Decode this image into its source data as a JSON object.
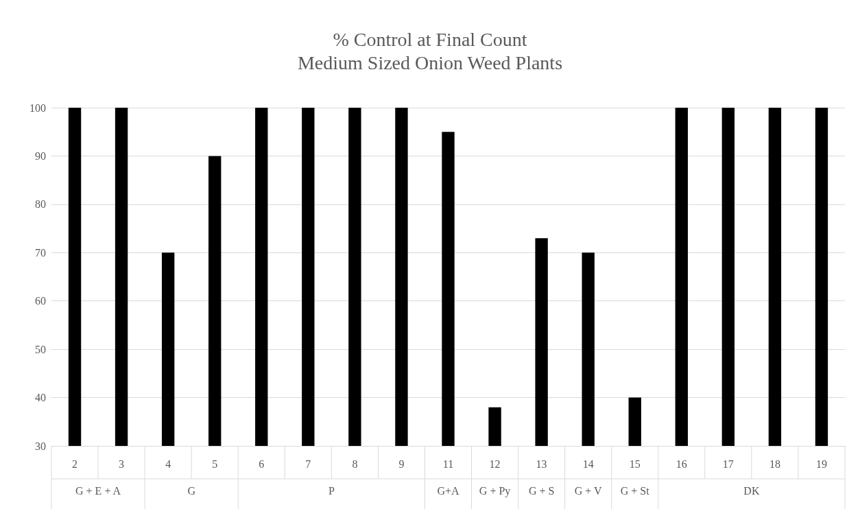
{
  "chart_data": {
    "type": "bar",
    "title": "% Control at Final Count",
    "subtitle": "Medium Sized Onion Weed Plants",
    "categories": [
      "2",
      "3",
      "4",
      "5",
      "6",
      "7",
      "8",
      "9",
      "11",
      "12",
      "13",
      "14",
      "15",
      "16",
      "17",
      "18",
      "19"
    ],
    "values": [
      100,
      100,
      70,
      90,
      100,
      100,
      100,
      100,
      95,
      38,
      73,
      70,
      40,
      100,
      100,
      100,
      100
    ],
    "color": "#000000",
    "ylim": [
      30,
      100
    ],
    "yticks": [
      30,
      40,
      50,
      60,
      70,
      80,
      90,
      100
    ],
    "grid": "y",
    "annotations": [
      "G + E + A",
      "G",
      "P",
      "G+A",
      "G + Py",
      "G + S",
      "G + V",
      "G + St",
      "DK"
    ]
  }
}
